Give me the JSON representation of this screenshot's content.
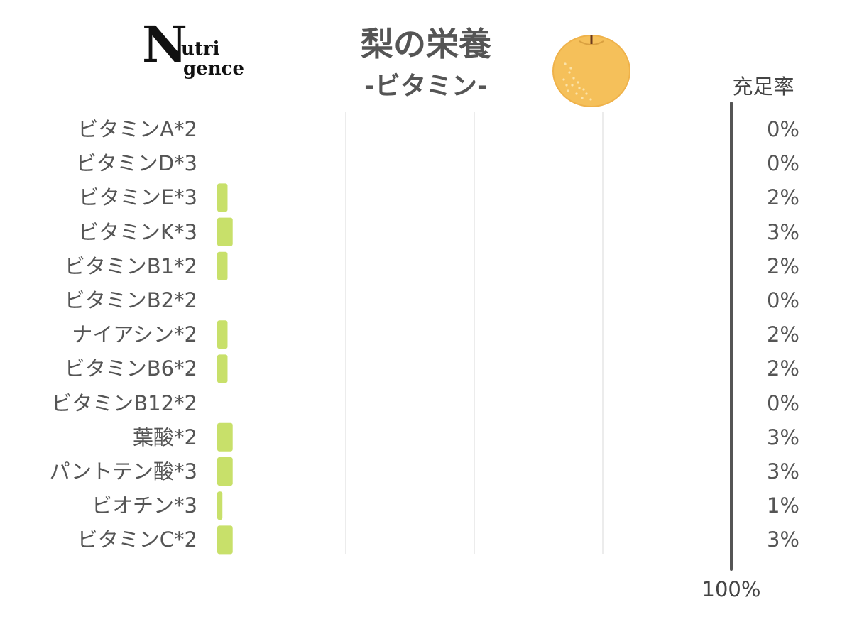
{
  "logo": {
    "n": "N",
    "line1": "utri",
    "line2": "gence"
  },
  "header": {
    "title": "梨の栄養",
    "subtitle": "-ビタミン-"
  },
  "right_column_title": "充足率",
  "scale_label": "100%",
  "colors": {
    "bar": "#c8e06a",
    "grid": "#e6e6e6",
    "axis": "#555555"
  },
  "chart_data": {
    "type": "bar",
    "orientation": "horizontal",
    "categories": [
      "ビタミンA*2",
      "ビタミンD*3",
      "ビタミンE*3",
      "ビタミンK*3",
      "ビタミンB1*2",
      "ビタミンB2*2",
      "ナイアシン*2",
      "ビタミンB6*2",
      "ビタミンB12*2",
      "葉酸*2",
      "パントテン酸*3",
      "ビオチン*3",
      "ビタミンC*2"
    ],
    "values": [
      0,
      0,
      2,
      3,
      2,
      0,
      2,
      2,
      0,
      3,
      3,
      1,
      3
    ],
    "value_labels": [
      "0%",
      "0%",
      "2%",
      "3%",
      "2%",
      "0%",
      "2%",
      "2%",
      "0%",
      "3%",
      "3%",
      "1%",
      "3%"
    ],
    "xlim": [
      0,
      100
    ],
    "grid": true
  }
}
